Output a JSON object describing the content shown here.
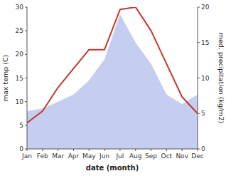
{
  "chart_data": {
    "type": "line",
    "categories": [
      "Jan",
      "Feb",
      "Mar",
      "Apr",
      "May",
      "Jun",
      "Jul",
      "Aug",
      "Sep",
      "Oct",
      "Nov",
      "Dec"
    ],
    "series": [
      {
        "type": "area",
        "color": "#c5cef0",
        "values": [
          8.0,
          8.5,
          10.0,
          11.5,
          14.5,
          19.0,
          28.5,
          22.5,
          18.0,
          11.5,
          9.5,
          11.5
        ]
      },
      {
        "type": "line",
        "color": "#c0392b",
        "values": [
          5.5,
          8.0,
          13.0,
          17.0,
          21.0,
          21.0,
          29.5,
          30.0,
          25.0,
          18.0,
          11.0,
          7.5
        ]
      }
    ],
    "xlabel": "date (month)",
    "ylabel": "max temp (C)",
    "y2label": "med. precipitation (kg/m2)",
    "ylim": [
      0,
      30
    ],
    "yticks": [
      0,
      5,
      10,
      15,
      20,
      25,
      30
    ],
    "y2lim": [
      0,
      20
    ],
    "y2ticks": [
      0,
      5,
      10,
      15,
      20
    ],
    "grid": false
  }
}
